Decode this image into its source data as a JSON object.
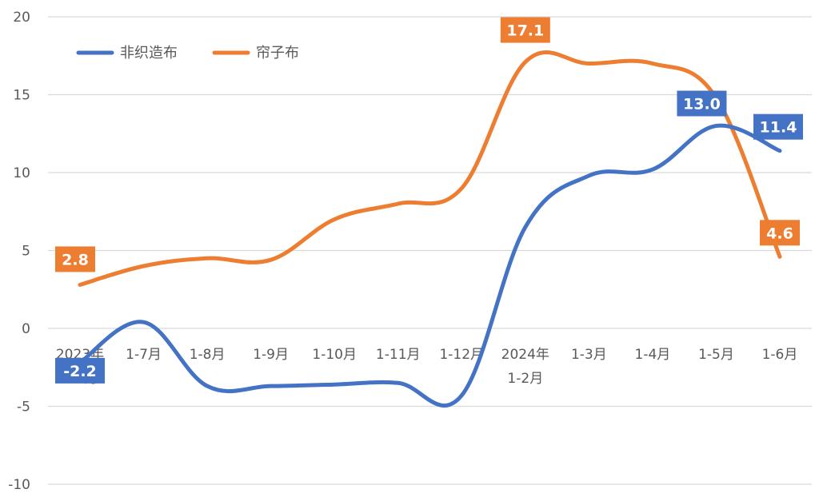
{
  "chart_data": {
    "type": "line",
    "categories": [
      [
        "2023年",
        "1-6月"
      ],
      [
        "1-7月"
      ],
      [
        "1-8月"
      ],
      [
        "1-9月"
      ],
      [
        "1-10月"
      ],
      [
        "1-11月"
      ],
      [
        "1-12月"
      ],
      [
        "2024年",
        "1-2月"
      ],
      [
        "1-3月"
      ],
      [
        "1-4月"
      ],
      [
        "1-5月"
      ],
      [
        "1-6月"
      ]
    ],
    "series": [
      {
        "name": "非织造布",
        "color": "#4472C4",
        "values": [
          -2.2,
          0.4,
          -3.7,
          -3.7,
          -3.6,
          -3.5,
          -4.3,
          6.5,
          9.8,
          10.2,
          13.0,
          11.4
        ],
        "labeled_points": [
          {
            "index": 0,
            "text": "-2.2"
          },
          {
            "index": 10,
            "text": "13.0"
          },
          {
            "index": 11,
            "text": "11.4"
          }
        ]
      },
      {
        "name": "帘子布",
        "color": "#ED7D31",
        "values": [
          2.8,
          4.0,
          4.5,
          4.4,
          7.0,
          8.0,
          9.0,
          17.1,
          17.0,
          17.0,
          14.8,
          4.6
        ],
        "labeled_points": [
          {
            "index": 0,
            "text": "2.8"
          },
          {
            "index": 7,
            "text": "17.1"
          },
          {
            "index": 11,
            "text": "4.6"
          }
        ]
      }
    ],
    "yticks": [
      "20",
      "15",
      "10",
      "5",
      "0",
      "-5",
      "-10"
    ],
    "ylim": [
      -10,
      20
    ],
    "grid": true,
    "legend": "top-left"
  }
}
